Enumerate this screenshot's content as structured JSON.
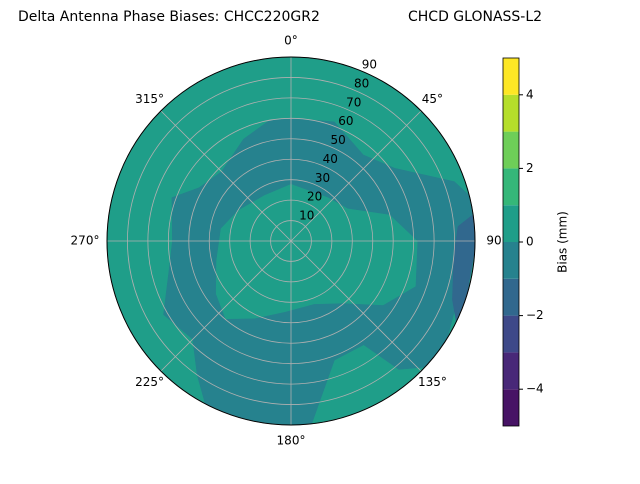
{
  "chart_data": {
    "type": "polar-contour",
    "title": "Delta Antenna Phase Biases: CHCC220GR2",
    "subtitle": "CHCD GLONASS-L2",
    "rlim": [
      0,
      90
    ],
    "rticks": [
      10,
      20,
      30,
      40,
      50,
      60,
      70,
      80,
      90
    ],
    "thetaticks": [
      {
        "value": 0,
        "label": "0°"
      },
      {
        "value": 45,
        "label": "45°"
      },
      {
        "value": 90,
        "label": "90°"
      },
      {
        "value": 135,
        "label": "135°"
      },
      {
        "value": 180,
        "label": "180°"
      },
      {
        "value": 225,
        "label": "225°"
      },
      {
        "value": 270,
        "label": "270°"
      },
      {
        "value": 315,
        "label": "315°"
      }
    ],
    "grid": true,
    "levels": [
      -5,
      -4,
      -3,
      -2,
      -1,
      0,
      1,
      2,
      3,
      4,
      5
    ],
    "colors": [
      "#471365",
      "#482878",
      "#3e4989",
      "#31688e",
      "#26828e",
      "#1f9e89",
      "#35b779",
      "#6ece58",
      "#b5de2b",
      "#fde725"
    ],
    "regions": [
      {
        "level": 0,
        "points": [
          [
            0,
            90
          ],
          [
            90,
            90
          ],
          [
            180,
            90
          ],
          [
            270,
            90
          ],
          [
            359,
            90
          ]
        ]
      },
      {
        "level": -1,
        "points": [
          [
            0,
            60
          ],
          [
            20,
            62
          ],
          [
            40,
            55
          ],
          [
            55,
            62
          ],
          [
            70,
            85
          ],
          [
            80,
            95
          ],
          [
            130,
            95
          ],
          [
            140,
            82
          ],
          [
            145,
            62
          ],
          [
            160,
            62
          ],
          [
            170,
            80
          ],
          [
            175,
            95
          ],
          [
            205,
            95
          ],
          [
            215,
            80
          ],
          [
            225,
            68
          ],
          [
            240,
            72
          ],
          [
            255,
            62
          ],
          [
            270,
            58
          ],
          [
            290,
            62
          ],
          [
            300,
            52
          ],
          [
            315,
            48
          ],
          [
            335,
            55
          ],
          [
            350,
            60
          ],
          [
            360,
            60
          ]
        ],
        "holes": [
          [
            0,
            28
          ],
          [
            40,
            28
          ],
          [
            60,
            32
          ],
          [
            75,
            50
          ],
          [
            90,
            62
          ],
          [
            110,
            65
          ],
          [
            125,
            55
          ],
          [
            140,
            40
          ],
          [
            160,
            33
          ],
          [
            185,
            35
          ],
          [
            205,
            42
          ],
          [
            220,
            50
          ],
          [
            235,
            45
          ],
          [
            255,
            38
          ],
          [
            280,
            35
          ],
          [
            300,
            30
          ],
          [
            330,
            26
          ],
          [
            360,
            28
          ]
        ]
      },
      {
        "level": -2,
        "points": [
          [
            80,
            95
          ],
          [
            85,
            82
          ],
          [
            95,
            80
          ],
          [
            110,
            84
          ],
          [
            120,
            95
          ]
        ]
      }
    ],
    "colorbar": {
      "label": "Bias (mm)",
      "ticks": [
        {
          "value": -4,
          "label": "−4"
        },
        {
          "value": -2,
          "label": "−2"
        },
        0,
        2,
        4
      ]
    }
  }
}
